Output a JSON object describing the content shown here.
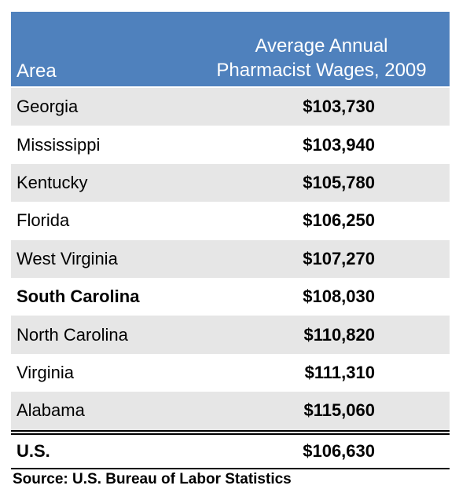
{
  "chart_data": {
    "type": "table",
    "columns": [
      "Area",
      "Average Annual Pharmacist Wages, 2009"
    ],
    "header": {
      "area": "Area",
      "wage_line1": "Average Annual",
      "wage_line2": "Pharmacist Wages, 2009"
    },
    "rows": [
      {
        "area": "Georgia",
        "wage": "$103,730",
        "value": 103730,
        "highlight": false
      },
      {
        "area": "Mississippi",
        "wage": "$103,940",
        "value": 103940,
        "highlight": false
      },
      {
        "area": "Kentucky",
        "wage": "$105,780",
        "value": 105780,
        "highlight": false
      },
      {
        "area": "Florida",
        "wage": "$106,250",
        "value": 106250,
        "highlight": false
      },
      {
        "area": "West Virginia",
        "wage": "$107,270",
        "value": 107270,
        "highlight": false
      },
      {
        "area": "South Carolina",
        "wage": "$108,030",
        "value": 108030,
        "highlight": true
      },
      {
        "area": "North Carolina",
        "wage": "$110,820",
        "value": 110820,
        "highlight": false
      },
      {
        "area": "Virginia",
        "wage": "$111,310",
        "value": 111310,
        "highlight": false
      },
      {
        "area": "Alabama",
        "wage": "$115,060",
        "value": 115060,
        "highlight": false
      }
    ],
    "total": {
      "area": "U.S.",
      "wage": "$106,630",
      "value": 106630
    },
    "source": "Source: U.S. Bureau of Labor Statistics"
  },
  "colors": {
    "header_bg": "#4f81bd",
    "header_text": "#ffffff",
    "row_shade": "#e6e6e6"
  }
}
